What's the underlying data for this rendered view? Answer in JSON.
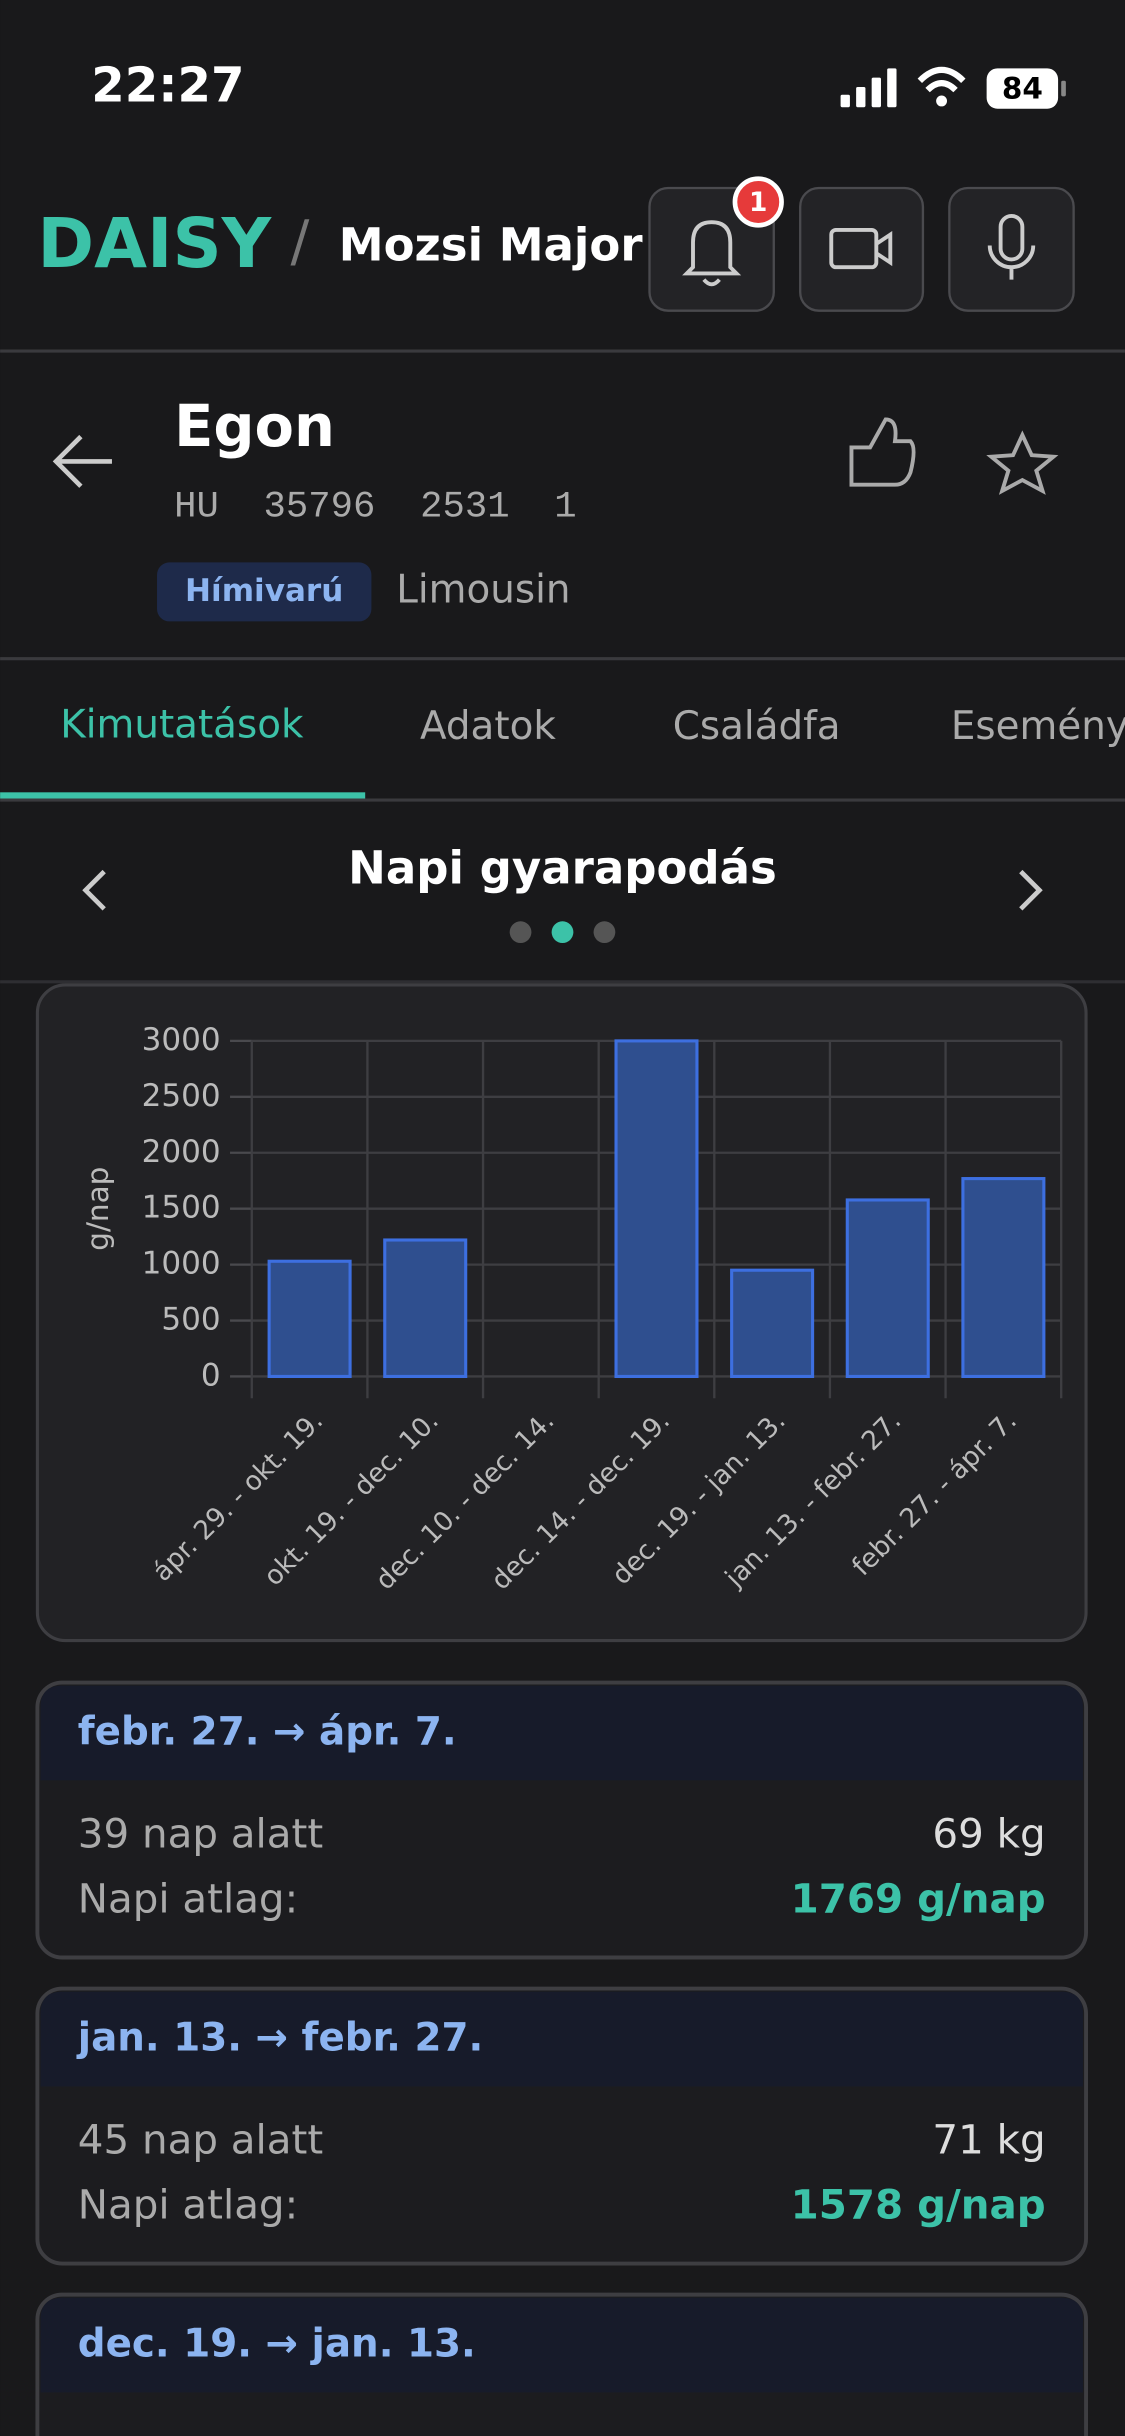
{
  "status_bar": {
    "time": "22:27",
    "battery": "84"
  },
  "header": {
    "brand": "DAISY",
    "separator": "/",
    "farm": "Mozsi Major",
    "notification_count": "1"
  },
  "animal": {
    "name": "Egon",
    "id": "HU  35796  2531  1",
    "sex": "Hímivarú",
    "breed": "Limousin"
  },
  "tabs": [
    "Kimutatások",
    "Adatok",
    "Családfa",
    "Esemény"
  ],
  "carousel": {
    "title": "Napi gyarapodás"
  },
  "chart_data": {
    "type": "bar",
    "y_label": "g/nap",
    "categories": [
      "ápr. 29. - okt. 19.",
      "okt. 19. - dec. 10.",
      "dec. 10. - dec. 14.",
      "dec. 14. - dec. 19.",
      "dec. 19. - jan. 13.",
      "jan. 13. - febr. 27.",
      "febr. 27. - ápr. 7."
    ],
    "values": [
      1030,
      1220,
      0,
      3000,
      950,
      1578,
      1769
    ],
    "color": "#2f4f8f",
    "ylim": [
      0,
      3000
    ],
    "yticks": [
      0,
      500,
      1000,
      1500,
      2000,
      2500,
      3000
    ],
    "grid": true
  },
  "cards": [
    {
      "period": "febr. 27. → ápr. 7.",
      "days": "39 nap alatt",
      "gain": "69 kg",
      "avg_label": "Napi atlag:",
      "avg": "1769 g/nap"
    },
    {
      "period": "jan. 13. → febr. 27.",
      "days": "45 nap alatt",
      "gain": "71 kg",
      "avg_label": "Napi atlag:",
      "avg": "1578 g/nap"
    },
    {
      "period": "dec. 19. → jan. 13."
    }
  ]
}
